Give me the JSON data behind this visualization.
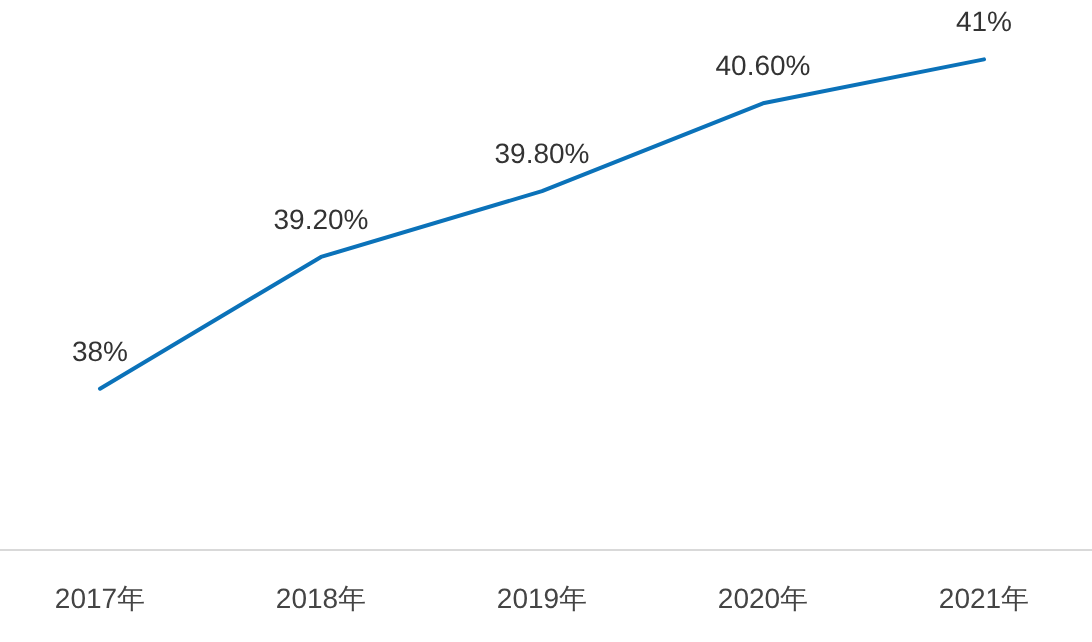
{
  "chart_data": {
    "type": "line",
    "categories": [
      "2017年",
      "2018年",
      "2019年",
      "2020年",
      "2021年"
    ],
    "series": [
      {
        "color": "#0b72b9",
        "values": [
          38,
          39.2,
          39.8,
          40.6,
          41
        ],
        "value_labels": [
          "38%",
          "39.20%",
          "39.80%",
          "40.60%",
          "41%"
        ]
      }
    ],
    "marker": "none",
    "line_style": "solid",
    "tick_labels": "x"
  }
}
